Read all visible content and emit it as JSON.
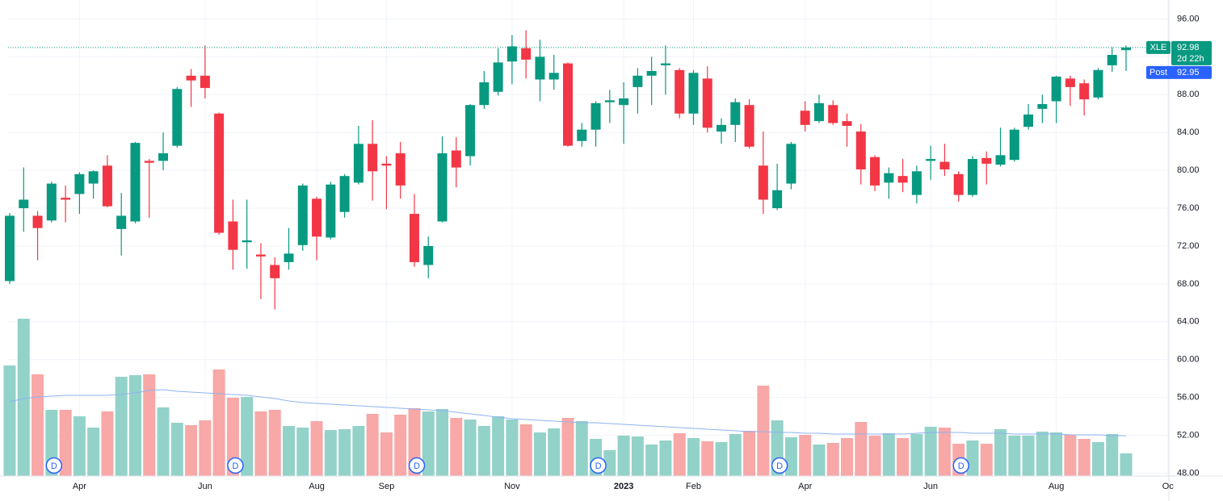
{
  "chart_data": {
    "type": "candlestick",
    "categories": [
      null,
      null,
      null,
      null,
      null,
      "Apr",
      null,
      null,
      null,
      null,
      null,
      null,
      null,
      null,
      "Jun",
      null,
      null,
      null,
      null,
      null,
      null,
      null,
      "Aug",
      null,
      null,
      null,
      null,
      "Sep",
      null,
      null,
      null,
      null,
      null,
      null,
      null,
      null,
      "Nov",
      null,
      null,
      null,
      null,
      null,
      null,
      null,
      "2023",
      null,
      null,
      null,
      null,
      "Feb",
      null,
      null,
      null,
      null,
      null,
      null,
      null,
      "Apr",
      null,
      null,
      null,
      null,
      null,
      null,
      null,
      null,
      "Jun",
      null,
      null,
      null,
      null,
      null,
      null,
      null,
      null,
      "Aug",
      null,
      null,
      null,
      null,
      null,
      null,
      null,
      "Oc"
    ],
    "open": [
      68.3,
      76.0,
      75.2,
      74.7,
      77.1,
      77.5,
      78.6,
      80.5,
      73.8,
      74.6,
      81.0,
      81.0,
      82.6,
      90.0,
      90.0,
      86.0,
      74.6,
      72.4,
      71.1,
      70.0,
      70.3,
      72.1,
      77.0,
      72.9,
      75.6,
      78.7,
      82.8,
      80.7,
      81.8,
      75.4,
      70.0,
      74.6,
      82.1,
      81.5,
      86.9,
      88.3,
      91.5,
      92.9,
      89.6,
      89.6,
      91.3,
      83.1,
      84.3,
      87.2,
      86.9,
      88.8,
      90.0,
      91.1,
      90.6,
      86.0,
      89.7,
      84.1,
      84.8,
      86.9,
      80.5,
      76.0,
      78.6,
      86.3,
      85.2,
      86.9,
      85.2,
      84.1,
      81.4,
      78.7,
      79.4,
      77.4,
      81.0,
      80.9,
      79.6,
      77.4,
      81.3,
      80.6,
      81.1,
      84.6,
      86.5,
      87.3,
      89.7,
      89.2,
      87.7,
      91.1,
      92.7,
      null,
      null,
      null
    ],
    "high": [
      75.5,
      80.3,
      75.7,
      78.8,
      78.4,
      79.8,
      80.0,
      81.6,
      77.6,
      83.0,
      81.2,
      84.0,
      88.8,
      90.7,
      93.2,
      86.1,
      76.9,
      76.9,
      72.3,
      70.8,
      73.9,
      78.6,
      77.2,
      78.8,
      79.6,
      84.7,
      85.3,
      81.5,
      83.0,
      77.5,
      73.0,
      83.6,
      83.5,
      87.0,
      90.5,
      92.9,
      94.3,
      94.8,
      93.8,
      92.2,
      91.4,
      85.0,
      87.3,
      88.5,
      89.3,
      90.8,
      92.0,
      93.2,
      90.8,
      90.6,
      91.0,
      85.5,
      87.6,
      87.5,
      84.1,
      80.7,
      83.0,
      87.3,
      88.0,
      87.4,
      86.0,
      84.9,
      81.6,
      80.3,
      81.2,
      80.5,
      82.6,
      82.8,
      79.9,
      81.5,
      82.0,
      84.5,
      84.5,
      87.0,
      88.0,
      90.0,
      90.0,
      89.6,
      90.8,
      93.0,
      93.2,
      null,
      null,
      null
    ],
    "low": [
      68.0,
      73.5,
      70.5,
      74.5,
      74.5,
      75.4,
      77.0,
      76.1,
      71.0,
      74.4,
      75.0,
      80.0,
      82.4,
      86.7,
      87.6,
      73.2,
      69.5,
      69.6,
      66.4,
      65.3,
      69.5,
      71.5,
      70.5,
      72.7,
      75.0,
      78.5,
      76.8,
      75.9,
      77.0,
      69.8,
      68.6,
      74.5,
      78.2,
      80.5,
      86.5,
      87.9,
      89.1,
      89.7,
      87.3,
      88.5,
      82.5,
      82.5,
      82.5,
      85.0,
      82.8,
      86.0,
      86.9,
      88.0,
      85.5,
      84.8,
      84.0,
      82.8,
      83.0,
      82.3,
      75.4,
      75.8,
      78.0,
      84.1,
      85.0,
      84.8,
      82.5,
      78.5,
      77.8,
      77.0,
      77.7,
      76.5,
      79.0,
      79.4,
      76.7,
      77.2,
      78.5,
      80.4,
      80.9,
      84.3,
      85.0,
      85.0,
      86.8,
      85.8,
      87.5,
      90.4,
      90.5,
      null,
      null,
      null
    ],
    "close": [
      75.2,
      76.9,
      73.9,
      78.6,
      76.9,
      79.6,
      79.9,
      76.2,
      75.2,
      82.9,
      80.8,
      81.8,
      88.6,
      89.5,
      88.7,
      73.4,
      71.6,
      72.6,
      70.9,
      68.6,
      71.2,
      78.4,
      73.0,
      78.5,
      79.4,
      82.8,
      79.9,
      80.5,
      78.4,
      70.3,
      72.0,
      81.8,
      80.3,
      86.9,
      89.3,
      91.4,
      93.1,
      91.7,
      92.0,
      90.3,
      82.6,
      84.3,
      87.1,
      87.4,
      87.6,
      90.0,
      90.5,
      91.3,
      86.0,
      90.3,
      84.5,
      84.8,
      87.2,
      82.5,
      76.9,
      77.9,
      82.8,
      84.8,
      87.1,
      85.0,
      84.7,
      80.1,
      78.4,
      79.7,
      78.7,
      79.9,
      81.2,
      80.1,
      77.4,
      81.2,
      80.7,
      81.6,
      84.3,
      85.9,
      87.0,
      89.9,
      88.8,
      87.5,
      90.6,
      92.2,
      92.98,
      null,
      null,
      null
    ],
    "volume": [
      137,
      195,
      126,
      82,
      82,
      74,
      60,
      80,
      123,
      125,
      126,
      85,
      66,
      63,
      69,
      132,
      97,
      98,
      80,
      82,
      62,
      60,
      68,
      57,
      58,
      62,
      77,
      54,
      76,
      84,
      80,
      83,
      72,
      70,
      62,
      74,
      70,
      64,
      54,
      59,
      72,
      68,
      46,
      32,
      50,
      49,
      39,
      44,
      53,
      47,
      43,
      42,
      52,
      56,
      112,
      69,
      48,
      51,
      39,
      41,
      47,
      67,
      50,
      53,
      47,
      52,
      61,
      60,
      40,
      44,
      40,
      58,
      50,
      50,
      55,
      54,
      51,
      46,
      42,
      52,
      28,
      null,
      null,
      null
    ],
    "volume_ma": [
      92,
      96,
      98,
      99,
      100,
      100,
      100,
      100,
      101,
      103,
      106,
      107,
      105,
      104,
      103,
      102,
      101,
      100,
      98,
      96,
      93,
      91,
      90,
      89,
      88,
      87,
      86,
      85,
      84,
      83,
      82,
      81,
      79,
      77,
      75,
      73,
      71,
      70,
      69,
      68,
      67,
      66,
      66,
      65,
      64,
      63,
      62,
      61,
      60,
      59,
      58,
      57,
      56,
      55,
      55,
      54,
      54,
      53,
      53,
      52,
      52,
      52,
      52,
      52,
      52,
      53,
      54,
      54,
      54,
      53,
      53,
      53,
      52,
      52,
      52,
      52,
      51,
      51,
      51,
      50,
      50,
      null,
      null,
      null
    ],
    "dividends": [
      null,
      null,
      null,
      "D",
      null,
      null,
      null,
      null,
      null,
      null,
      null,
      null,
      null,
      null,
      null,
      null,
      "D",
      null,
      null,
      null,
      null,
      null,
      null,
      null,
      null,
      null,
      null,
      null,
      null,
      "D",
      null,
      null,
      null,
      null,
      null,
      null,
      null,
      null,
      null,
      null,
      null,
      null,
      "D",
      null,
      null,
      null,
      null,
      null,
      null,
      null,
      null,
      null,
      null,
      null,
      null,
      "D",
      null,
      null,
      null,
      null,
      null,
      null,
      null,
      null,
      null,
      null,
      null,
      null,
      "D",
      null,
      null,
      null,
      null,
      null,
      null,
      null,
      null,
      null,
      null,
      null,
      null,
      null,
      null,
      null
    ],
    "up_color": "#089981",
    "down_color": "#f23645",
    "volume_up_color": "#93d2c9",
    "volume_down_color": "#f7a8a7",
    "volume_ma_color": "#8fb3f0",
    "ylim": [
      47.7,
      98.0
    ],
    "volume_lim": [
      0,
      200
    ],
    "yticks": [
      {
        "value": 48,
        "label": "48.00"
      },
      {
        "value": 52,
        "label": "52.00"
      },
      {
        "value": 56,
        "label": "56.00"
      },
      {
        "value": 60,
        "label": "60.00"
      },
      {
        "value": 64,
        "label": "64.00"
      },
      {
        "value": 68,
        "label": "68.00"
      },
      {
        "value": 72,
        "label": "72.00"
      },
      {
        "value": 76,
        "label": "76.00"
      },
      {
        "value": 80,
        "label": "80.00"
      },
      {
        "value": 84,
        "label": "84.00"
      },
      {
        "value": 88,
        "label": "88.00"
      },
      {
        "value": 92,
        "label": "92.00"
      },
      {
        "value": 96,
        "label": "96.00"
      }
    ],
    "grid": true,
    "last": {
      "symbol": "XLE",
      "value": 92.98,
      "countdown": "2d 22h"
    },
    "post": {
      "label": "Post",
      "value": 92.95
    }
  }
}
